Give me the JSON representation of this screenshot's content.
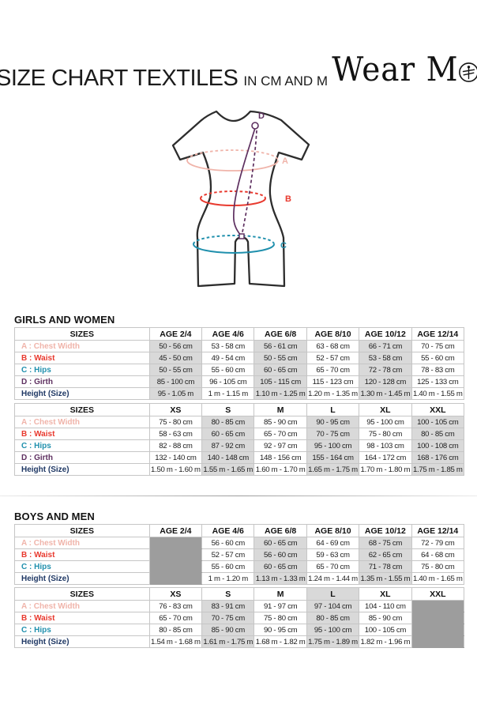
{
  "page": {
    "title": "SIZE CHART TEXTILES",
    "subtitle": "IN CM AND M",
    "brand": {
      "full": "Wear Moi",
      "part1": "Wear M",
      "part2": "i"
    }
  },
  "diagram": {
    "labels": {
      "chest": "A",
      "waist": "B",
      "hips": "C",
      "girth": "D"
    },
    "colors": {
      "chest": "#f0b4aa",
      "waist": "#e8392e",
      "hips": "#2090ad",
      "girth": "#5e3060",
      "height": "#1f3864",
      "outline": "#2d2d2d",
      "shade_light": "#d9d9d9",
      "shade_dark": "#9d9d9d"
    }
  },
  "sections": [
    {
      "heading": "GIRLS AND WOMEN",
      "tables": [
        "girls_age",
        "girls_letter"
      ]
    },
    {
      "heading": "BOYS AND MEN",
      "tables": [
        "boys_age",
        "boys_letter"
      ]
    }
  ],
  "tables": {
    "girls_age": {
      "headers": [
        "SIZES",
        "AGE 2/4",
        "AGE 4/6",
        "AGE 6/8",
        "AGE 8/10",
        "AGE 10/12",
        "AGE 12/14"
      ],
      "shaded_cols": [
        0,
        2,
        4
      ],
      "blocked_cols": [],
      "header_shaded_cols": [],
      "rows": [
        {
          "label": "A : Chest Width",
          "color": "chest",
          "values": [
            "50 - 56 cm",
            "53 - 58 cm",
            "56 - 61 cm",
            "63 - 68 cm",
            "66 - 71 cm",
            "70 - 75 cm"
          ]
        },
        {
          "label": "B : Waist",
          "color": "waist",
          "values": [
            "45 - 50 cm",
            "49 - 54 cm",
            "50 - 55 cm",
            "52 - 57 cm",
            "53 - 58 cm",
            "55 - 60 cm"
          ]
        },
        {
          "label": "C : Hips",
          "color": "hips",
          "values": [
            "50 - 55 cm",
            "55 - 60 cm",
            "60 - 65 cm",
            "65 - 70 cm",
            "72 - 78 cm",
            "78 - 83 cm"
          ]
        },
        {
          "label": "D : Girth",
          "color": "girth",
          "values": [
            "85 - 100 cm",
            "96 - 105 cm",
            "105 - 115 cm",
            "115 - 123 cm",
            "120 - 128 cm",
            "125 - 133 cm"
          ]
        },
        {
          "label": "Height (Size)",
          "color": "height",
          "values": [
            "95 - 1.05 m",
            "1 m - 1.15 m",
            "1.10 m - 1.25 m",
            "1.20 m - 1.35 m",
            "1.30 m - 1.45 m",
            "1.40 m - 1.55 m"
          ]
        }
      ]
    },
    "girls_letter": {
      "headers": [
        "SIZES",
        "XS",
        "S",
        "M",
        "L",
        "XL",
        "XXL"
      ],
      "shaded_cols": [
        1,
        3,
        5
      ],
      "blocked_cols": [],
      "header_shaded_cols": [],
      "rows": [
        {
          "label": "A : Chest Width",
          "color": "chest",
          "values": [
            "75 - 80 cm",
            "80 - 85 cm",
            "85 - 90 cm",
            "90 - 95 cm",
            "95 - 100 cm",
            "100 - 105 cm"
          ]
        },
        {
          "label": "B : Waist",
          "color": "waist",
          "values": [
            "58 - 63 cm",
            "60 - 65 cm",
            "65 - 70 cm",
            "70 - 75 cm",
            "75 - 80 cm",
            "80 - 85 cm"
          ]
        },
        {
          "label": "C : Hips",
          "color": "hips",
          "values": [
            "82 - 88 cm",
            "87 - 92 cm",
            "92 - 97 cm",
            "95 - 100 cm",
            "98 - 103 cm",
            "100 - 108 cm"
          ]
        },
        {
          "label": "D : Girth",
          "color": "girth",
          "values": [
            "132 - 140 cm",
            "140 - 148 cm",
            "148 - 156 cm",
            "155 - 164 cm",
            "164 - 172 cm",
            "168 - 176 cm"
          ]
        },
        {
          "label": "Height (Size)",
          "color": "height",
          "values": [
            "1.50 m - 1.60 m",
            "1.55 m - 1.65 m",
            "1.60 m - 1.70 m",
            "1.65 m - 1.75 m",
            "1.70 m - 1.80 m",
            "1.75 m - 1.85 m"
          ]
        }
      ]
    },
    "boys_age": {
      "headers": [
        "SIZES",
        "AGE 2/4",
        "AGE 4/6",
        "AGE 6/8",
        "AGE 8/10",
        "AGE 10/12",
        "AGE 12/14"
      ],
      "shaded_cols": [
        2,
        4
      ],
      "blocked_cols": [
        0
      ],
      "header_shaded_cols": [],
      "rows": [
        {
          "label": "A : Chest Width",
          "color": "chest",
          "values": [
            "",
            "56 - 60 cm",
            "60 - 65 cm",
            "64 - 69 cm",
            "68 - 75 cm",
            "72 - 79 cm"
          ]
        },
        {
          "label": "B : Waist",
          "color": "waist",
          "values": [
            "",
            "52 - 57 cm",
            "56 - 60 cm",
            "59 - 63 cm",
            "62 - 65 cm",
            "64 - 68 cm"
          ]
        },
        {
          "label": "C : Hips",
          "color": "hips",
          "values": [
            "",
            "55 - 60 cm",
            "60 - 65 cm",
            "65 - 70 cm",
            "71 - 78 cm",
            "75 - 80 cm"
          ]
        },
        {
          "label": "Height (Size)",
          "color": "height",
          "values": [
            "",
            "1 m - 1.20 m",
            "1.13 m - 1.33 m",
            "1.24 m - 1.44 m",
            "1.35 m - 1.55 m",
            "1.40 m - 1.65 m"
          ]
        }
      ]
    },
    "boys_letter": {
      "headers": [
        "SIZES",
        "XS",
        "S",
        "M",
        "L",
        "XL",
        "XXL"
      ],
      "shaded_cols": [
        1,
        3
      ],
      "blocked_cols": [
        5
      ],
      "header_shaded_cols": [
        3
      ],
      "rows": [
        {
          "label": "A : Chest Width",
          "color": "chest",
          "values": [
            "76 - 83 cm",
            "83 - 91 cm",
            "91 - 97 cm",
            "97 - 104 cm",
            "104 - 110 cm",
            ""
          ]
        },
        {
          "label": "B : Waist",
          "color": "waist",
          "values": [
            "65 - 70 cm",
            "70 - 75 cm",
            "75 - 80 cm",
            "80 - 85 cm",
            "85 - 90 cm",
            ""
          ]
        },
        {
          "label": "C : Hips",
          "color": "hips",
          "values": [
            "80 - 85 cm",
            "85 - 90 cm",
            "90 - 95 cm",
            "95 - 100 cm",
            "100 - 105 cm",
            ""
          ]
        },
        {
          "label": "Height (Size)",
          "color": "height",
          "values": [
            "1.54 m - 1.68 m",
            "1.61 m - 1.75 m",
            "1.68 m - 1.82 m",
            "1.75 m - 1.89 m",
            "1.82 m - 1.96 m",
            ""
          ]
        }
      ]
    }
  }
}
